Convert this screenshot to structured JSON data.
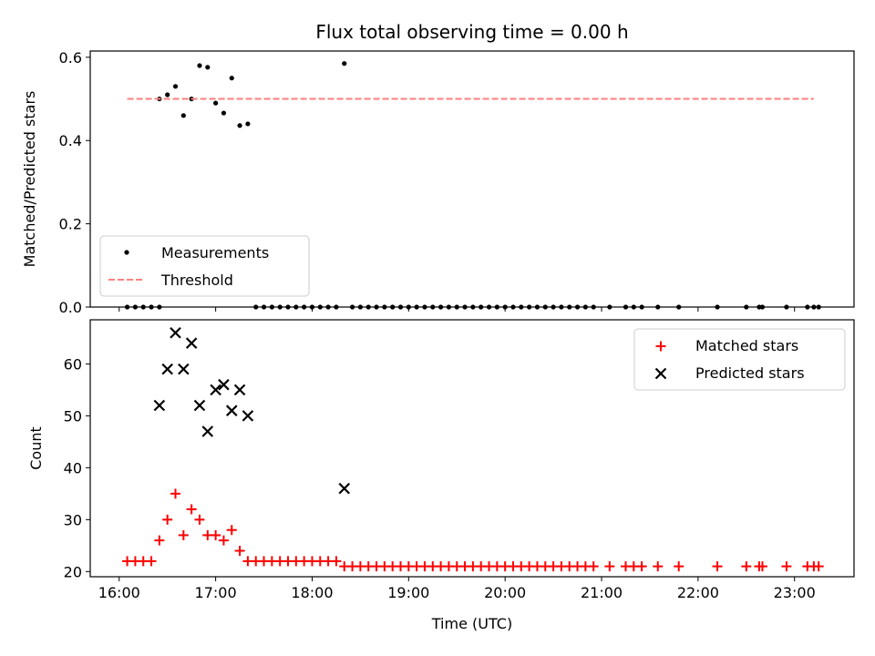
{
  "chart_data": [
    {
      "type": "scatter",
      "title": "Flux total observing time = 0.00 h",
      "ylabel": "Matched/Predicted stars",
      "xlabel": "",
      "ylim": [
        0,
        0.615
      ],
      "yticks": [
        "0.0",
        "0.2",
        "0.4",
        "0.6"
      ],
      "legend": {
        "placement": "lower-left",
        "entries": [
          "Measurements",
          "Threshold"
        ]
      },
      "series": [
        {
          "name": "Measurements",
          "color": "#000000",
          "marker": "dot",
          "points": [
            [
              "16:05",
              0
            ],
            [
              "16:10",
              0
            ],
            [
              "16:15",
              0
            ],
            [
              "16:20",
              0
            ],
            [
              "16:25",
              0
            ],
            [
              "16:25",
              0.5
            ],
            [
              "16:30",
              0.51
            ],
            [
              "16:35",
              0.53
            ],
            [
              "16:40",
              0.46
            ],
            [
              "16:45",
              0.5
            ],
            [
              "16:50",
              0.58
            ],
            [
              "16:55",
              0.576
            ],
            [
              "17:00",
              0.49
            ],
            [
              "17:05",
              0.466
            ],
            [
              "17:10",
              0.55
            ],
            [
              "17:15",
              0.436
            ],
            [
              "17:20",
              0.44
            ],
            [
              "17:25",
              0
            ],
            [
              "17:30",
              0
            ],
            [
              "17:35",
              0
            ],
            [
              "17:40",
              0
            ],
            [
              "17:45",
              0
            ],
            [
              "17:50",
              0
            ],
            [
              "17:55",
              0
            ],
            [
              "18:00",
              0
            ],
            [
              "18:05",
              0
            ],
            [
              "18:10",
              0
            ],
            [
              "18:15",
              0
            ],
            [
              "18:20",
              0.585
            ],
            [
              "18:25",
              0
            ],
            [
              "18:30",
              0
            ],
            [
              "18:35",
              0
            ],
            [
              "18:40",
              0
            ],
            [
              "18:45",
              0
            ],
            [
              "18:50",
              0
            ],
            [
              "18:55",
              0
            ],
            [
              "19:00",
              0
            ],
            [
              "19:05",
              0
            ],
            [
              "19:10",
              0
            ],
            [
              "19:15",
              0
            ],
            [
              "19:20",
              0
            ],
            [
              "19:25",
              0
            ],
            [
              "19:30",
              0
            ],
            [
              "19:35",
              0
            ],
            [
              "19:40",
              0
            ],
            [
              "19:45",
              0
            ],
            [
              "19:50",
              0
            ],
            [
              "19:55",
              0
            ],
            [
              "20:00",
              0
            ],
            [
              "20:05",
              0
            ],
            [
              "20:10",
              0
            ],
            [
              "20:15",
              0
            ],
            [
              "20:20",
              0
            ],
            [
              "20:25",
              0
            ],
            [
              "20:30",
              0
            ],
            [
              "20:35",
              0
            ],
            [
              "20:40",
              0
            ],
            [
              "20:45",
              0
            ],
            [
              "20:50",
              0
            ],
            [
              "20:55",
              0
            ],
            [
              "21:05",
              0
            ],
            [
              "21:15",
              0
            ],
            [
              "21:20",
              0
            ],
            [
              "21:25",
              0
            ],
            [
              "21:35",
              0
            ],
            [
              "21:48",
              0
            ],
            [
              "22:12",
              0
            ],
            [
              "22:30",
              0
            ],
            [
              "22:38",
              0
            ],
            [
              "22:40",
              0
            ],
            [
              "22:55",
              0
            ],
            [
              "23:08",
              0
            ],
            [
              "23:12",
              0
            ],
            [
              "23:15",
              0
            ]
          ]
        },
        {
          "name": "Threshold",
          "color": "#ff7f7f",
          "line": "dashed",
          "points": [
            [
              "16:05",
              0.5
            ],
            [
              "23:12",
              0.5
            ]
          ]
        }
      ]
    },
    {
      "type": "scatter",
      "title": "",
      "ylabel": "Count",
      "xlabel": "Time (UTC)",
      "ylim": [
        19,
        68.5
      ],
      "yticks": [
        "20",
        "30",
        "40",
        "50",
        "60"
      ],
      "xticks": [
        "16:00",
        "17:00",
        "18:00",
        "19:00",
        "20:00",
        "21:00",
        "22:00",
        "23:00"
      ],
      "legend": {
        "placement": "top-right",
        "entries": [
          "Matched stars",
          "Predicted stars"
        ]
      },
      "series": [
        {
          "name": "Matched stars",
          "color": "#ff0000",
          "marker": "plus",
          "points": [
            [
              "16:05",
              22
            ],
            [
              "16:10",
              22
            ],
            [
              "16:15",
              22
            ],
            [
              "16:20",
              22
            ],
            [
              "16:25",
              26
            ],
            [
              "16:30",
              30
            ],
            [
              "16:35",
              35
            ],
            [
              "16:40",
              27
            ],
            [
              "16:45",
              32
            ],
            [
              "16:50",
              30
            ],
            [
              "16:55",
              27
            ],
            [
              "17:00",
              27
            ],
            [
              "17:05",
              26
            ],
            [
              "17:10",
              28
            ],
            [
              "17:15",
              24
            ],
            [
              "17:20",
              22
            ],
            [
              "17:25",
              22
            ],
            [
              "17:30",
              22
            ],
            [
              "17:35",
              22
            ],
            [
              "17:40",
              22
            ],
            [
              "17:45",
              22
            ],
            [
              "17:50",
              22
            ],
            [
              "17:55",
              22
            ],
            [
              "18:00",
              22
            ],
            [
              "18:05",
              22
            ],
            [
              "18:10",
              22
            ],
            [
              "18:15",
              22
            ],
            [
              "18:20",
              21
            ],
            [
              "18:25",
              21
            ],
            [
              "18:30",
              21
            ],
            [
              "18:35",
              21
            ],
            [
              "18:40",
              21
            ],
            [
              "18:45",
              21
            ],
            [
              "18:50",
              21
            ],
            [
              "18:55",
              21
            ],
            [
              "19:00",
              21
            ],
            [
              "19:05",
              21
            ],
            [
              "19:10",
              21
            ],
            [
              "19:15",
              21
            ],
            [
              "19:20",
              21
            ],
            [
              "19:25",
              21
            ],
            [
              "19:30",
              21
            ],
            [
              "19:35",
              21
            ],
            [
              "19:40",
              21
            ],
            [
              "19:45",
              21
            ],
            [
              "19:50",
              21
            ],
            [
              "19:55",
              21
            ],
            [
              "20:00",
              21
            ],
            [
              "20:05",
              21
            ],
            [
              "20:10",
              21
            ],
            [
              "20:15",
              21
            ],
            [
              "20:20",
              21
            ],
            [
              "20:25",
              21
            ],
            [
              "20:30",
              21
            ],
            [
              "20:35",
              21
            ],
            [
              "20:40",
              21
            ],
            [
              "20:45",
              21
            ],
            [
              "20:50",
              21
            ],
            [
              "20:55",
              21
            ],
            [
              "21:05",
              21
            ],
            [
              "21:15",
              21
            ],
            [
              "21:20",
              21
            ],
            [
              "21:25",
              21
            ],
            [
              "21:35",
              21
            ],
            [
              "21:48",
              21
            ],
            [
              "22:12",
              21
            ],
            [
              "22:30",
              21
            ],
            [
              "22:38",
              21
            ],
            [
              "22:40",
              21
            ],
            [
              "22:55",
              21
            ],
            [
              "23:08",
              21
            ],
            [
              "23:12",
              21
            ],
            [
              "23:15",
              21
            ]
          ]
        },
        {
          "name": "Predicted stars",
          "color": "#000000",
          "marker": "x",
          "points": [
            [
              "16:25",
              52
            ],
            [
              "16:30",
              59
            ],
            [
              "16:35",
              66
            ],
            [
              "16:40",
              59
            ],
            [
              "16:45",
              64
            ],
            [
              "16:50",
              52
            ],
            [
              "16:55",
              47
            ],
            [
              "17:00",
              55
            ],
            [
              "17:05",
              56
            ],
            [
              "17:10",
              51
            ],
            [
              "17:15",
              55
            ],
            [
              "17:20",
              50
            ],
            [
              "18:20",
              36
            ]
          ]
        }
      ]
    }
  ]
}
